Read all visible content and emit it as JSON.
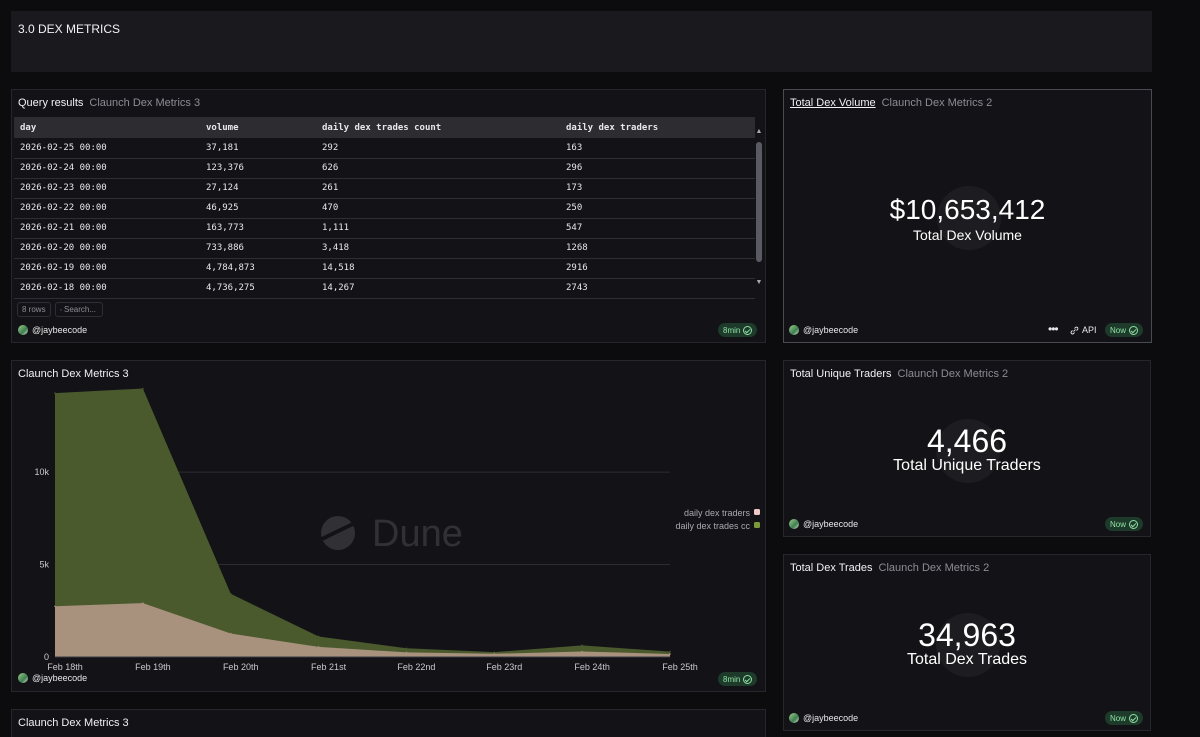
{
  "dashboard": {
    "title": "3.0 DEX METRICS"
  },
  "table_panel": {
    "title": "Query results",
    "query_name": "Claunch Dex Metrics 3",
    "columns": [
      "day",
      "volume",
      "daily dex trades count",
      "daily dex traders"
    ],
    "rows": [
      [
        "2026-02-25 00:00",
        "37,181",
        "292",
        "163"
      ],
      [
        "2026-02-24 00:00",
        "123,376",
        "626",
        "296"
      ],
      [
        "2026-02-23 00:00",
        "27,124",
        "261",
        "173"
      ],
      [
        "2026-02-22 00:00",
        "46,925",
        "470",
        "250"
      ],
      [
        "2026-02-21 00:00",
        "163,773",
        "1,111",
        "547"
      ],
      [
        "2026-02-20 00:00",
        "733,886",
        "3,418",
        "1268"
      ],
      [
        "2026-02-19 00:00",
        "4,784,873",
        "14,518",
        "2916"
      ],
      [
        "2026-02-18 00:00",
        "4,736,275",
        "14,267",
        "2743"
      ]
    ],
    "row_count_label": "8 rows",
    "search_placeholder": "Search...",
    "author": "@jaybeecode",
    "freshness": "8min"
  },
  "volume_panel": {
    "title": "Total Dex Volume",
    "query_name": "Claunch Dex Metrics 2",
    "value": "$10,653,412",
    "label": "Total Dex Volume",
    "author": "@jaybeecode",
    "more_label": "•••",
    "api_label": "API",
    "freshness": "Now"
  },
  "chart_panel": {
    "title": "Claunch Dex Metrics 3",
    "author": "@jaybeecode",
    "freshness": "8min",
    "watermark": "Dune"
  },
  "traders_panel": {
    "title": "Total Unique Traders",
    "query_name": "Claunch Dex Metrics 2",
    "value": "4,466",
    "label": "Total Unique Traders",
    "author": "@jaybeecode",
    "freshness": "Now"
  },
  "trades_panel": {
    "title": "Total Dex Trades",
    "query_name": "Claunch Dex Metrics 2",
    "value": "34,963",
    "label": "Total Dex Trades",
    "author": "@jaybeecode",
    "freshness": "Now"
  },
  "bottom_panel": {
    "title": "Claunch Dex Metrics 3"
  },
  "colors": {
    "trades_area": "#4a5a2c",
    "traders_area": "#a8927e",
    "badge_text": "#8fe1a4"
  },
  "chart_data": {
    "type": "area",
    "title": "Claunch Dex Metrics 3",
    "categories": [
      "Feb 18th",
      "Feb 19th",
      "Feb 20th",
      "Feb 21st",
      "Feb 22nd",
      "Feb 23rd",
      "Feb 24th",
      "Feb 25th"
    ],
    "series": [
      {
        "name": "daily dex traders",
        "values": [
          2743,
          2916,
          1268,
          547,
          250,
          173,
          296,
          163
        ],
        "color": "#a8927e",
        "legend_color": "#f0c8c8"
      },
      {
        "name": "daily dex trades count",
        "values": [
          14267,
          14518,
          3418,
          1111,
          470,
          261,
          626,
          292
        ],
        "color": "#4a5a2c",
        "legend_color": "#7a9a3a"
      }
    ],
    "yticks": [
      0,
      5000,
      10000
    ],
    "ytick_labels": [
      "0",
      "5k",
      "10k"
    ],
    "ylim": [
      0,
      14600
    ],
    "legend_labels": [
      "daily dex traders",
      "daily dex trades cc"
    ],
    "legend_position": "right",
    "grid": true
  }
}
